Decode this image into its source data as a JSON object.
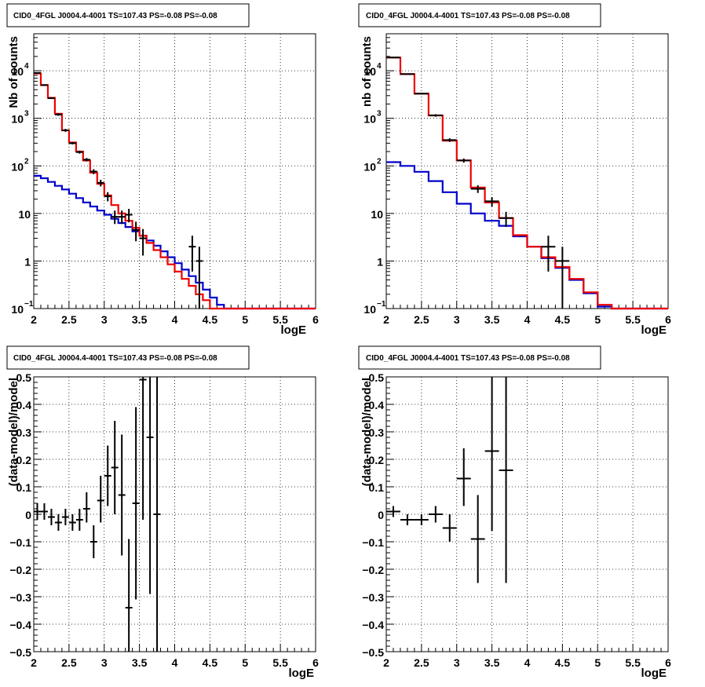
{
  "colors": {
    "data": "#000000",
    "total_model": "#ee0000",
    "component": "#0000cc",
    "grid": "#000000"
  },
  "chart_data": [
    {
      "type": "line",
      "title": "CID0_4FGL J0004.4-4001 TS=107.43 PS=-0.08 PS=-0.08",
      "xlabel": "logE",
      "ylabel": "Nb of counts",
      "xlim": [
        2,
        6
      ],
      "ylim": [
        0.1,
        60000
      ],
      "yscale": "log",
      "grid": true,
      "xticks": [
        "2",
        "2.5",
        "3",
        "3.5",
        "4",
        "4.5",
        "5",
        "5.5",
        "6"
      ],
      "yticks": [
        {
          "value": 0.1,
          "label": "10",
          "exp": "−1"
        },
        {
          "value": 1,
          "label": "1",
          "exp": ""
        },
        {
          "value": 10,
          "label": "10",
          "exp": ""
        },
        {
          "value": 100,
          "label": "10",
          "exp": "2"
        },
        {
          "value": 1000,
          "label": "10",
          "exp": "3"
        },
        {
          "value": 10000,
          "label": "10",
          "exp": "4"
        }
      ],
      "bin_edges": [
        2.0,
        2.1,
        2.2,
        2.3,
        2.4,
        2.5,
        2.6,
        2.7,
        2.8,
        2.9,
        3.0,
        3.1,
        3.2,
        3.3,
        3.4,
        3.5,
        3.6,
        3.7,
        3.8,
        3.9,
        4.0,
        4.1,
        4.2,
        4.3,
        4.4,
        4.5,
        4.6,
        4.7,
        4.8,
        4.9,
        5.0,
        5.1,
        5.2,
        5.3,
        5.4,
        5.5,
        5.6,
        5.7,
        5.8,
        5.9,
        6.0
      ],
      "series": [
        {
          "role": "total_model",
          "values": [
            8800,
            5000,
            2700,
            1250,
            560,
            310,
            200,
            130,
            72,
            42,
            24,
            15,
            10,
            7,
            5,
            3.4,
            2.4,
            1.7,
            1.2,
            0.85,
            0.6,
            0.42,
            0.3,
            0.2,
            0.15,
            0.1,
            0.1,
            0.1,
            0.1,
            0.1,
            0.1,
            0.1,
            0.1,
            0.1,
            0.1,
            0.1,
            0.1,
            0.1,
            0.1,
            0.1
          ]
        },
        {
          "role": "component",
          "values": [
            62,
            55,
            46,
            38,
            32,
            26,
            21,
            17,
            14,
            11.5,
            9.4,
            7.7,
            6.3,
            5.2,
            4.2,
            3.4,
            2.7,
            2.1,
            1.6,
            1.2,
            0.9,
            0.66,
            0.48,
            0.35,
            0.25,
            0.17,
            0.12,
            0.1,
            0.1,
            0.1,
            0.1,
            0.1,
            0.1,
            0.1,
            0.1,
            0.1,
            0.1,
            0.1,
            0.1,
            0.1
          ]
        }
      ],
      "points": [
        {
          "x": 2.05,
          "y": 9000,
          "lo": 8800,
          "hi": 9200
        },
        {
          "x": 2.15,
          "y": 5000,
          "lo": 4860,
          "hi": 5140
        },
        {
          "x": 2.25,
          "y": 2650,
          "lo": 2550,
          "hi": 2750
        },
        {
          "x": 2.35,
          "y": 1200,
          "lo": 1130,
          "hi": 1270
        },
        {
          "x": 2.45,
          "y": 560,
          "lo": 520,
          "hi": 600
        },
        {
          "x": 2.55,
          "y": 300,
          "lo": 283,
          "hi": 317
        },
        {
          "x": 2.65,
          "y": 195,
          "lo": 181,
          "hi": 209
        },
        {
          "x": 2.75,
          "y": 135,
          "lo": 124,
          "hi": 146
        },
        {
          "x": 2.85,
          "y": 76,
          "lo": 67,
          "hi": 85
        },
        {
          "x": 2.95,
          "y": 44,
          "lo": 37,
          "hi": 51
        },
        {
          "x": 3.05,
          "y": 23,
          "lo": 18,
          "hi": 28
        },
        {
          "x": 3.15,
          "y": 8.5,
          "lo": 6,
          "hi": 11.5
        },
        {
          "x": 3.25,
          "y": 8.5,
          "lo": 6,
          "hi": 11.5
        },
        {
          "x": 3.35,
          "y": 9.4,
          "lo": 6.5,
          "hi": 12.5
        },
        {
          "x": 3.45,
          "y": 4.5,
          "lo": 2.6,
          "hi": 6.7
        },
        {
          "x": 3.55,
          "y": 3,
          "lo": 1.3,
          "hi": 4.7
        },
        {
          "x": 4.25,
          "y": 2,
          "lo": 0.6,
          "hi": 3.4
        },
        {
          "x": 4.35,
          "y": 1,
          "lo": 0.1,
          "hi": 2
        }
      ]
    },
    {
      "type": "line",
      "title": "CID0_4FGL J0004.4-4001 TS=107.43 PS=-0.08 PS=-0.08",
      "xlabel": "logE",
      "ylabel": "nb of counts",
      "xlim": [
        2,
        6
      ],
      "ylim": [
        0.1,
        60000
      ],
      "yscale": "log",
      "grid": true,
      "xticks": [
        "2",
        "2.5",
        "3",
        "3.5",
        "4",
        "4.5",
        "5",
        "5.5",
        "6"
      ],
      "yticks": [
        {
          "value": 0.1,
          "label": "10",
          "exp": "−1"
        },
        {
          "value": 1,
          "label": "1",
          "exp": ""
        },
        {
          "value": 10,
          "label": "10",
          "exp": ""
        },
        {
          "value": 100,
          "label": "10",
          "exp": "2"
        },
        {
          "value": 1000,
          "label": "10",
          "exp": "3"
        },
        {
          "value": 10000,
          "label": "10",
          "exp": "4"
        }
      ],
      "bin_edges": [
        2.0,
        2.2,
        2.4,
        2.6,
        2.8,
        3.0,
        3.2,
        3.4,
        3.6,
        3.8,
        4.0,
        4.2,
        4.4,
        4.6,
        4.8,
        5.0,
        5.2,
        5.4,
        5.6,
        5.8,
        6.0
      ],
      "series": [
        {
          "role": "total_model",
          "values": [
            19000,
            8500,
            3300,
            1150,
            340,
            130,
            35,
            17,
            8,
            3.5,
            2,
            1.2,
            0.75,
            0.42,
            0.22,
            0.12,
            0.1,
            0.1,
            0.1,
            0.1
          ]
        },
        {
          "role": "component",
          "values": [
            120,
            100,
            75,
            48,
            28,
            16,
            10,
            7,
            5.5,
            3.3,
            2,
            1.15,
            0.72,
            0.4,
            0.21,
            0.11,
            0.1,
            0.1,
            0.1,
            0.1
          ]
        }
      ],
      "points": [
        {
          "x": 2.1,
          "y": 19000,
          "lo": 18700,
          "hi": 19300
        },
        {
          "x": 2.3,
          "y": 8500,
          "lo": 8320,
          "hi": 8680
        },
        {
          "x": 2.5,
          "y": 3300,
          "lo": 3190,
          "hi": 3410
        },
        {
          "x": 2.7,
          "y": 1150,
          "lo": 1080,
          "hi": 1220
        },
        {
          "x": 2.9,
          "y": 350,
          "lo": 320,
          "hi": 380
        },
        {
          "x": 3.1,
          "y": 130,
          "lo": 117,
          "hi": 143
        },
        {
          "x": 3.3,
          "y": 33,
          "lo": 27,
          "hi": 39
        },
        {
          "x": 3.5,
          "y": 18,
          "lo": 14,
          "hi": 22
        },
        {
          "x": 3.7,
          "y": 8,
          "lo": 5.2,
          "hi": 10.8
        },
        {
          "x": 4.3,
          "y": 2,
          "lo": 0.6,
          "hi": 3.4
        },
        {
          "x": 4.5,
          "y": 1,
          "lo": 0.1,
          "hi": 2
        }
      ]
    },
    {
      "type": "scatter",
      "title": "CID0_4FGL J0004.4-4001 TS=107.43 PS=-0.08 PS=-0.08",
      "xlabel": "logE",
      "ylabel": "(data-model)/model",
      "xlim": [
        2,
        6
      ],
      "ylim": [
        -0.5,
        0.5
      ],
      "yscale": "linear",
      "grid": true,
      "xticks": [
        "2",
        "2.5",
        "3",
        "3.5",
        "4",
        "4.5",
        "5",
        "5.5",
        "6"
      ],
      "yticks": [
        "0.5",
        "0.4",
        "0.3",
        "0.2",
        "0.1",
        "0",
        "−0.1",
        "−0.2",
        "−0.3",
        "−0.4",
        "−0.5"
      ],
      "ytick_values": [
        0.5,
        0.4,
        0.3,
        0.2,
        0.1,
        0,
        -0.1,
        -0.2,
        -0.3,
        -0.4,
        -0.5
      ],
      "xerr": 0.05,
      "points": [
        {
          "x": 2.05,
          "y": 0.01,
          "lo": -0.02,
          "hi": 0.04
        },
        {
          "x": 2.15,
          "y": 0.01,
          "lo": -0.02,
          "hi": 0.04
        },
        {
          "x": 2.25,
          "y": -0.01,
          "lo": -0.04,
          "hi": 0.02
        },
        {
          "x": 2.35,
          "y": -0.03,
          "lo": -0.06,
          "hi": 0.0
        },
        {
          "x": 2.45,
          "y": -0.01,
          "lo": -0.04,
          "hi": 0.02
        },
        {
          "x": 2.55,
          "y": -0.03,
          "lo": -0.06,
          "hi": 0.0
        },
        {
          "x": 2.65,
          "y": -0.02,
          "lo": -0.06,
          "hi": 0.02
        },
        {
          "x": 2.75,
          "y": 0.02,
          "lo": -0.03,
          "hi": 0.08
        },
        {
          "x": 2.85,
          "y": -0.1,
          "lo": -0.16,
          "hi": -0.04
        },
        {
          "x": 2.95,
          "y": 0.05,
          "lo": -0.03,
          "hi": 0.14
        },
        {
          "x": 3.05,
          "y": 0.14,
          "lo": 0.03,
          "hi": 0.25
        },
        {
          "x": 3.15,
          "y": 0.17,
          "lo": 0.0,
          "hi": 0.34
        },
        {
          "x": 3.25,
          "y": 0.07,
          "lo": -0.15,
          "hi": 0.29
        },
        {
          "x": 3.35,
          "y": -0.34,
          "lo": -0.5,
          "hi": -0.09
        },
        {
          "x": 3.45,
          "y": 0.04,
          "lo": -0.31,
          "hi": 0.39
        },
        {
          "x": 3.55,
          "y": 0.49,
          "lo": -0.02,
          "hi": 0.5
        },
        {
          "x": 3.65,
          "y": 0.28,
          "lo": -0.29,
          "hi": 0.5
        },
        {
          "x": 3.75,
          "y": 0.0,
          "lo": -0.5,
          "hi": 0.5
        }
      ]
    },
    {
      "type": "scatter",
      "title": "CID0_4FGL J0004.4-4001 TS=107.43 PS=-0.08 PS=-0.08",
      "xlabel": "logE",
      "ylabel": "(data-model)/model",
      "xlim": [
        2,
        6
      ],
      "ylim": [
        -0.5,
        0.5
      ],
      "yscale": "linear",
      "grid": true,
      "xticks": [
        "2",
        "2.5",
        "3",
        "3.5",
        "4",
        "4.5",
        "5",
        "5.5",
        "6"
      ],
      "yticks": [
        "0.5",
        "0.4",
        "0.3",
        "0.2",
        "0.1",
        "0",
        "−0.1",
        "−0.2",
        "−0.3",
        "−0.4",
        "−0.5"
      ],
      "ytick_values": [
        0.5,
        0.4,
        0.3,
        0.2,
        0.1,
        0,
        -0.1,
        -0.2,
        -0.3,
        -0.4,
        -0.5
      ],
      "xerr": 0.1,
      "points": [
        {
          "x": 2.1,
          "y": 0.01,
          "lo": -0.01,
          "hi": 0.03
        },
        {
          "x": 2.3,
          "y": -0.02,
          "lo": -0.04,
          "hi": 0.0
        },
        {
          "x": 2.5,
          "y": -0.02,
          "lo": -0.04,
          "hi": 0.0
        },
        {
          "x": 2.7,
          "y": 0.0,
          "lo": -0.03,
          "hi": 0.03
        },
        {
          "x": 2.9,
          "y": -0.05,
          "lo": -0.1,
          "hi": 0.0
        },
        {
          "x": 3.1,
          "y": 0.13,
          "lo": 0.03,
          "hi": 0.24
        },
        {
          "x": 3.3,
          "y": -0.09,
          "lo": -0.25,
          "hi": 0.07
        },
        {
          "x": 3.5,
          "y": 0.23,
          "lo": -0.06,
          "hi": 0.5
        },
        {
          "x": 3.7,
          "y": 0.16,
          "lo": -0.25,
          "hi": 0.5
        }
      ]
    }
  ]
}
